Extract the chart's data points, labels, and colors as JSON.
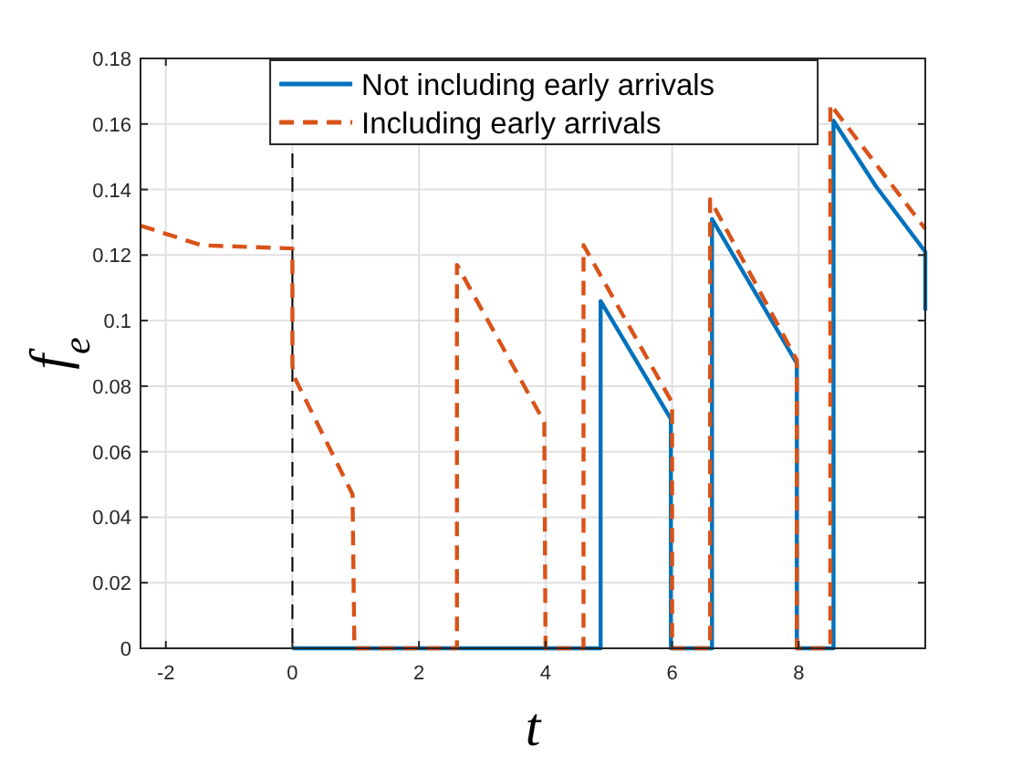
{
  "chart_data": {
    "type": "line",
    "xlabel": "t",
    "ylabel": "f$_{e}$",
    "xlim": [
      -2.4,
      10
    ],
    "ylim": [
      0,
      0.18
    ],
    "xticks": [
      -2,
      0,
      2,
      4,
      6,
      8
    ],
    "yticks": [
      0,
      0.02,
      0.04,
      0.06,
      0.08,
      0.1,
      0.12,
      0.14,
      0.16,
      0.18
    ],
    "grid": true,
    "legend": "top right",
    "series": [
      {
        "name": "Not including early arrivals",
        "color": "#0072bd",
        "line_style": "solid",
        "x": [
          0,
          4.87,
          4.87,
          5.98,
          5.98,
          6.63,
          6.63,
          7.97,
          7.97,
          8.55,
          8.55,
          9.22,
          10,
          10
        ],
        "values": [
          0,
          0,
          0.106,
          0.07,
          0,
          0,
          0.131,
          0.087,
          0,
          0,
          0.161,
          0.141,
          0.121,
          0.103
        ]
      },
      {
        "name": "Including early arrivals",
        "color": "#d95319",
        "line_style": "dashed",
        "x": [
          -2.4,
          -1.44,
          0,
          0,
          0.05,
          0.95,
          0.98,
          2.6,
          2.6,
          3.98,
          4,
          4.6,
          4.6,
          6,
          6,
          6.6,
          6.6,
          7.97,
          7.97,
          8.5,
          8.5,
          10
        ],
        "values": [
          0.129,
          0.123,
          0.122,
          0.086,
          0.082,
          0.047,
          0,
          0,
          0.117,
          0.069,
          0,
          0,
          0.123,
          0.075,
          0,
          0,
          0.137,
          0.088,
          0,
          0,
          0.166,
          0.128
        ]
      }
    ],
    "ref_lines": [
      {
        "axis": "x",
        "value": 0,
        "color": "#000000",
        "line_style": "dashed"
      }
    ]
  }
}
